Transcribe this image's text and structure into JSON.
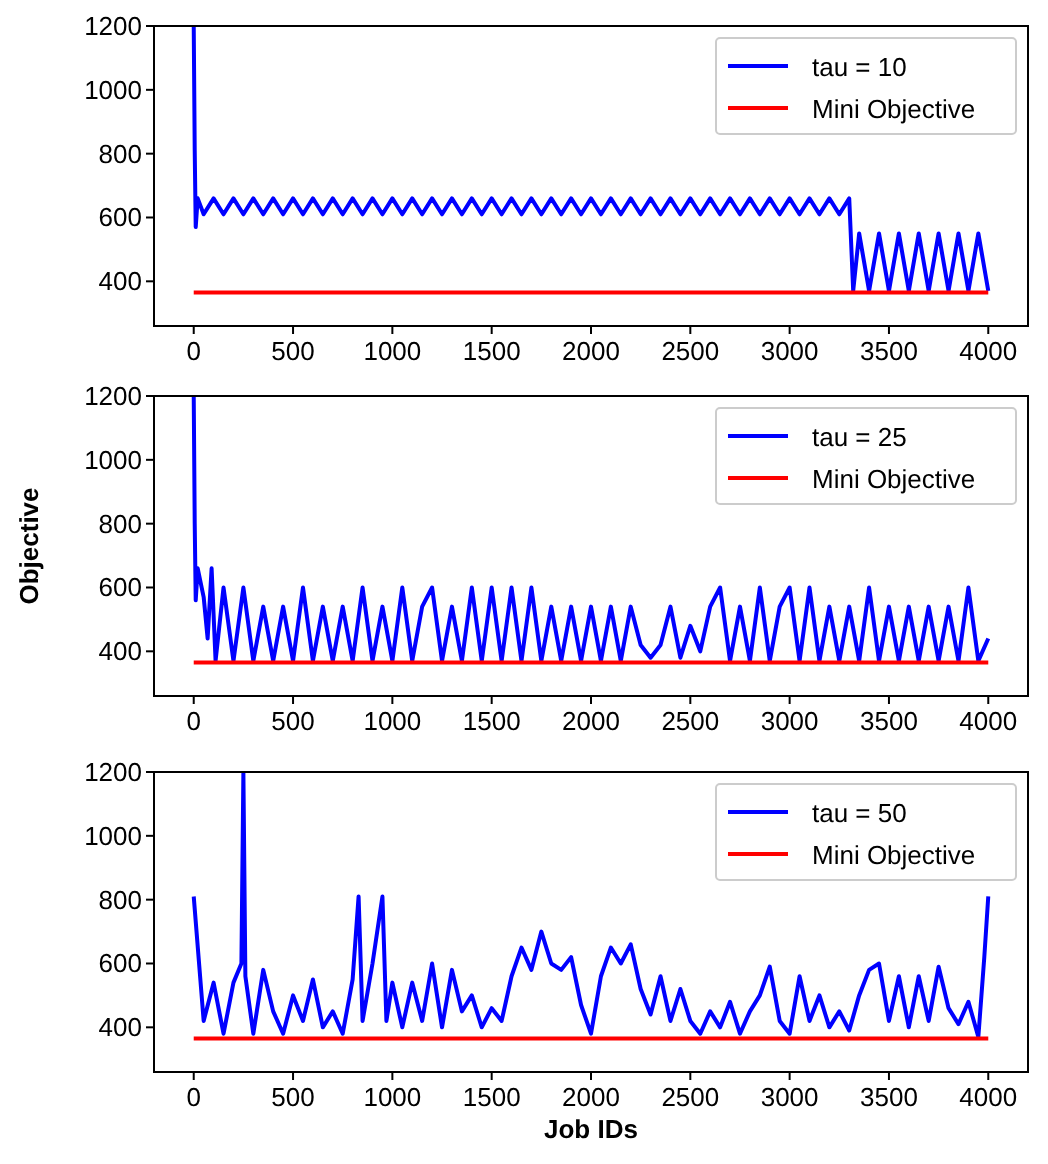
{
  "chart_data": [
    {
      "type": "line",
      "xlim": [
        -200,
        4200
      ],
      "ylim": [
        260,
        1200
      ],
      "xticks": [
        0,
        500,
        1000,
        1500,
        2000,
        2500,
        3000,
        3500,
        4000
      ],
      "yticks": [
        400,
        600,
        800,
        1000,
        1200
      ],
      "legend": "top right",
      "grid": false,
      "series": [
        {
          "name": "tau = 10",
          "color": "#0000ff",
          "x": [
            0,
            5,
            10,
            20,
            50,
            100,
            150,
            200,
            250,
            300,
            350,
            400,
            450,
            500,
            550,
            600,
            650,
            700,
            750,
            800,
            850,
            900,
            950,
            1000,
            1050,
            1100,
            1150,
            1200,
            1250,
            1300,
            1350,
            1400,
            1450,
            1500,
            1550,
            1600,
            1650,
            1700,
            1750,
            1800,
            1850,
            1900,
            1950,
            2000,
            2050,
            2100,
            2150,
            2200,
            2250,
            2300,
            2350,
            2400,
            2450,
            2500,
            2550,
            2600,
            2650,
            2700,
            2750,
            2800,
            2850,
            2900,
            2950,
            3000,
            3050,
            3100,
            3150,
            3200,
            3250,
            3300,
            3320,
            3350,
            3400,
            3450,
            3500,
            3550,
            3600,
            3650,
            3700,
            3750,
            3800,
            3850,
            3900,
            3950,
            4000
          ],
          "values": [
            1200,
            810,
            570,
            660,
            610,
            660,
            610,
            660,
            610,
            660,
            610,
            660,
            610,
            660,
            610,
            660,
            610,
            660,
            610,
            660,
            610,
            660,
            610,
            660,
            610,
            660,
            610,
            660,
            610,
            660,
            610,
            660,
            610,
            660,
            610,
            660,
            610,
            660,
            610,
            660,
            610,
            660,
            610,
            660,
            610,
            660,
            610,
            660,
            610,
            660,
            610,
            660,
            610,
            660,
            610,
            660,
            610,
            660,
            610,
            660,
            610,
            660,
            610,
            660,
            610,
            660,
            610,
            660,
            610,
            660,
            370,
            550,
            370,
            550,
            370,
            550,
            370,
            550,
            370,
            550,
            370,
            550,
            370,
            550,
            370
          ]
        },
        {
          "name": "Mini Objective",
          "color": "#ff0000",
          "x": [
            0,
            4000
          ],
          "values": [
            365,
            365
          ]
        }
      ]
    },
    {
      "type": "line",
      "ylabel": "Objective",
      "xlim": [
        -200,
        4200
      ],
      "ylim": [
        260,
        1200
      ],
      "xticks": [
        0,
        500,
        1000,
        1500,
        2000,
        2500,
        3000,
        3500,
        4000
      ],
      "yticks": [
        400,
        600,
        800,
        1000,
        1200
      ],
      "legend": "top right",
      "grid": false,
      "series": [
        {
          "name": "tau = 25",
          "color": "#0000ff",
          "x": [
            0,
            5,
            10,
            20,
            50,
            70,
            90,
            110,
            150,
            200,
            250,
            300,
            350,
            400,
            450,
            500,
            550,
            600,
            650,
            700,
            750,
            800,
            850,
            900,
            950,
            1000,
            1050,
            1100,
            1150,
            1200,
            1250,
            1300,
            1350,
            1400,
            1450,
            1500,
            1550,
            1600,
            1650,
            1700,
            1750,
            1800,
            1850,
            1900,
            1950,
            2000,
            2050,
            2100,
            2150,
            2200,
            2250,
            2300,
            2350,
            2400,
            2450,
            2500,
            2550,
            2600,
            2650,
            2700,
            2750,
            2800,
            2850,
            2900,
            2950,
            3000,
            3050,
            3100,
            3150,
            3200,
            3250,
            3300,
            3350,
            3400,
            3450,
            3500,
            3550,
            3600,
            3650,
            3700,
            3750,
            3800,
            3850,
            3900,
            3950,
            4000
          ],
          "values": [
            1200,
            800,
            560,
            660,
            570,
            440,
            660,
            370,
            600,
            370,
            600,
            370,
            540,
            370,
            540,
            370,
            600,
            370,
            540,
            370,
            540,
            370,
            600,
            370,
            540,
            370,
            600,
            370,
            540,
            600,
            370,
            540,
            370,
            600,
            370,
            600,
            370,
            600,
            370,
            600,
            370,
            540,
            370,
            540,
            370,
            540,
            370,
            540,
            370,
            540,
            420,
            380,
            420,
            540,
            380,
            480,
            400,
            540,
            600,
            370,
            540,
            370,
            600,
            370,
            540,
            600,
            370,
            600,
            370,
            540,
            370,
            540,
            370,
            600,
            370,
            540,
            370,
            540,
            370,
            540,
            370,
            540,
            370,
            600,
            370,
            440
          ]
        },
        {
          "name": "Mini Objective",
          "color": "#ff0000",
          "x": [
            0,
            4000
          ],
          "values": [
            365,
            365
          ]
        }
      ]
    },
    {
      "type": "line",
      "xlabel": "Job IDs",
      "xlim": [
        -200,
        4200
      ],
      "ylim": [
        260,
        1200
      ],
      "xticks": [
        0,
        500,
        1000,
        1500,
        2000,
        2500,
        3000,
        3500,
        4000
      ],
      "yticks": [
        400,
        600,
        800,
        1000,
        1200
      ],
      "legend": "top right",
      "grid": false,
      "series": [
        {
          "name": "tau = 50",
          "color": "#0000ff",
          "x": [
            0,
            50,
            100,
            150,
            200,
            240,
            250,
            260,
            300,
            350,
            400,
            450,
            500,
            550,
            600,
            650,
            700,
            750,
            800,
            830,
            850,
            900,
            950,
            970,
            1000,
            1050,
            1100,
            1150,
            1200,
            1250,
            1300,
            1350,
            1400,
            1450,
            1500,
            1550,
            1600,
            1650,
            1700,
            1750,
            1800,
            1850,
            1900,
            1950,
            2000,
            2050,
            2100,
            2150,
            2200,
            2250,
            2300,
            2350,
            2400,
            2450,
            2500,
            2550,
            2600,
            2650,
            2700,
            2750,
            2800,
            2850,
            2900,
            2950,
            3000,
            3050,
            3100,
            3150,
            3200,
            3250,
            3300,
            3350,
            3400,
            3450,
            3500,
            3550,
            3600,
            3650,
            3700,
            3750,
            3800,
            3850,
            3900,
            3950,
            3980,
            4000
          ],
          "values": [
            810,
            420,
            540,
            380,
            540,
            600,
            1200,
            560,
            380,
            580,
            450,
            380,
            500,
            420,
            550,
            400,
            450,
            380,
            550,
            810,
            420,
            600,
            810,
            420,
            540,
            400,
            540,
            420,
            600,
            400,
            580,
            450,
            500,
            400,
            460,
            420,
            560,
            650,
            580,
            700,
            600,
            580,
            620,
            470,
            380,
            560,
            650,
            600,
            660,
            520,
            440,
            560,
            420,
            520,
            420,
            380,
            450,
            400,
            480,
            380,
            450,
            500,
            590,
            420,
            380,
            560,
            420,
            500,
            400,
            450,
            390,
            500,
            580,
            600,
            420,
            560,
            400,
            560,
            420,
            590,
            460,
            410,
            480,
            370,
            620,
            810
          ]
        },
        {
          "name": "Mini Objective",
          "color": "#ff0000",
          "x": [
            0,
            4000
          ],
          "values": [
            365,
            365
          ]
        }
      ]
    }
  ]
}
